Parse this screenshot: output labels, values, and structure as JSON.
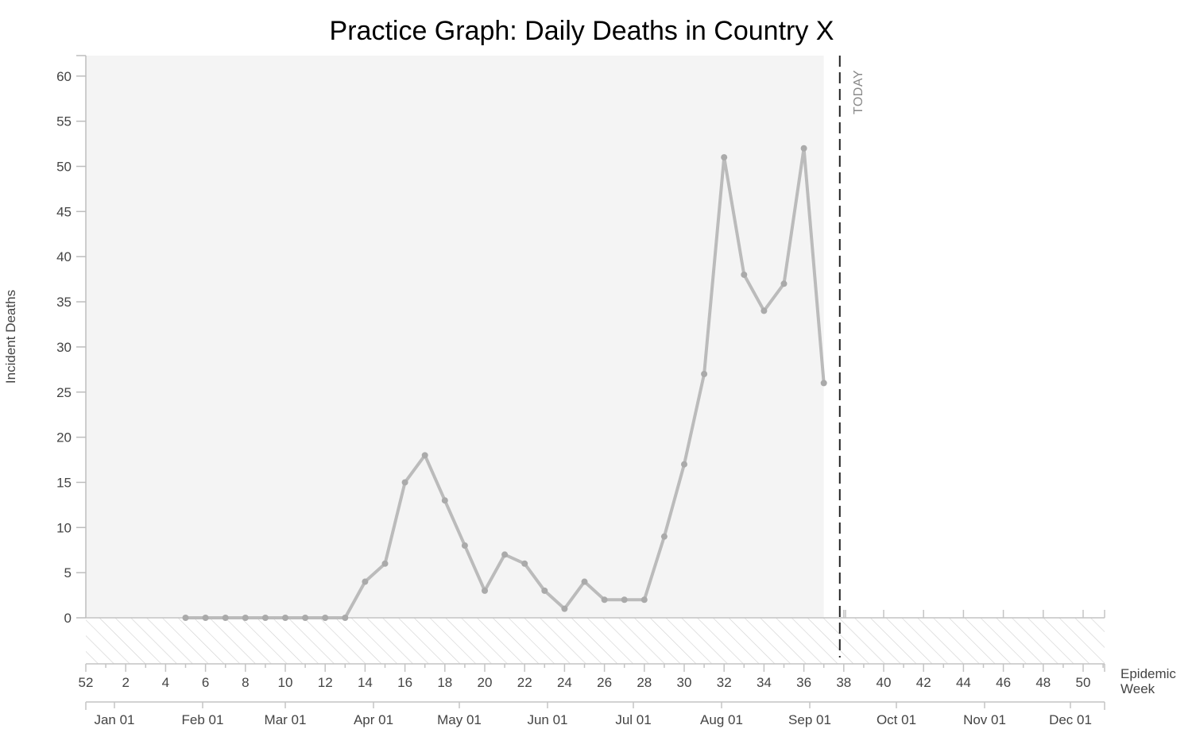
{
  "chart_data": {
    "type": "line",
    "title": "Practice Graph: Daily Deaths in Country X",
    "ylabel": "Incident Deaths",
    "xlabel": "Epidemic Week",
    "ylim": [
      0,
      62
    ],
    "y_ticks": [
      0,
      5,
      10,
      15,
      20,
      25,
      30,
      35,
      40,
      45,
      50,
      55,
      60
    ],
    "week_ticks": [
      "52",
      "2",
      "4",
      "6",
      "8",
      "10",
      "12",
      "14",
      "16",
      "18",
      "20",
      "22",
      "24",
      "26",
      "28",
      "30",
      "32",
      "34",
      "36",
      "38",
      "40",
      "42",
      "44",
      "46",
      "48",
      "50"
    ],
    "month_ticks": [
      "Jan 01",
      "Feb 01",
      "Mar 01",
      "Apr 01",
      "May 01",
      "Jun 01",
      "Jul 01",
      "Aug 01",
      "Sep 01",
      "Oct 01",
      "Nov 01",
      "Dec 01"
    ],
    "today_label": "TODAY",
    "today_week": 37.8,
    "line_color": "#bbbbbb",
    "point_color": "#aaaaaa",
    "shade_color": "#f4f4f4",
    "series": [
      {
        "weeks": [
          5,
          6,
          7,
          8,
          9,
          10,
          11,
          12,
          13,
          14,
          15,
          16,
          17,
          18,
          19,
          20,
          21,
          22,
          23,
          24,
          25,
          26,
          27,
          28,
          29,
          30,
          31,
          32,
          33,
          34,
          35,
          36,
          37
        ],
        "values": [
          0,
          0,
          0,
          0,
          0,
          0,
          0,
          0,
          0,
          4,
          6,
          15,
          18,
          13,
          8,
          3,
          7,
          6,
          3,
          1,
          4,
          2,
          2,
          2,
          9,
          17,
          27,
          51,
          38,
          34,
          37,
          52,
          26
        ]
      }
    ]
  }
}
